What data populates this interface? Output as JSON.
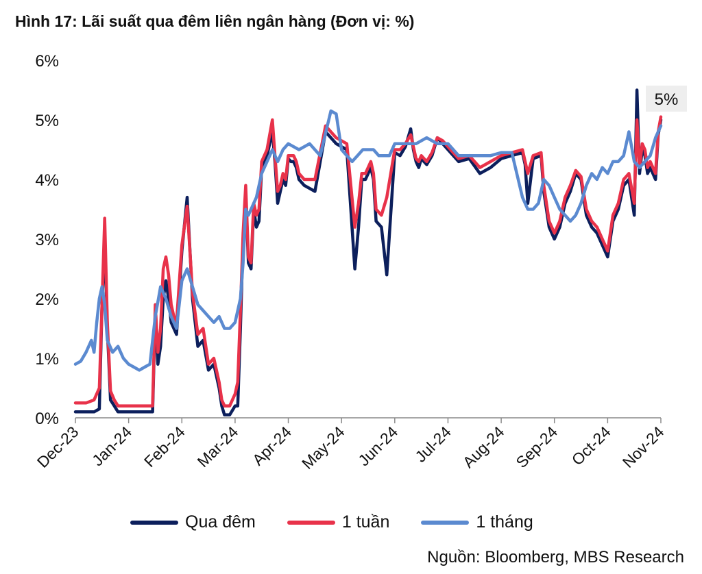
{
  "chart_data": {
    "type": "line",
    "title": "Hình 17: Lãi suất qua đêm liên ngân hàng (Đơn vị: %)",
    "source": "Nguồn: Bloomberg, MBS Research",
    "ylim": [
      0,
      6
    ],
    "yticks": [
      "0%",
      "1%",
      "2%",
      "3%",
      "4%",
      "5%",
      "6%"
    ],
    "categories": [
      "Dec-23",
      "Jan-24",
      "Feb-24",
      "Mar-24",
      "Apr-24",
      "May-24",
      "Jun-24",
      "Jul-24",
      "Aug-24",
      "Sep-24",
      "Oct-24",
      "Nov-24"
    ],
    "annotation": {
      "text": "5%",
      "value": 5.0,
      "position": "end"
    },
    "series": [
      {
        "name": "Qua đêm",
        "color": "#0c1f5c",
        "x": [
          0,
          0.2,
          0.35,
          0.45,
          0.5,
          0.55,
          0.6,
          0.66,
          0.73,
          0.8,
          0.9,
          1.0,
          1.15,
          1.3,
          1.45,
          1.5,
          1.55,
          1.6,
          1.65,
          1.7,
          1.75,
          1.8,
          1.85,
          1.9,
          2.0,
          2.1,
          2.2,
          2.3,
          2.4,
          2.5,
          2.6,
          2.7,
          2.75,
          2.8,
          2.9,
          3.0,
          3.05,
          3.1,
          3.15,
          3.2,
          3.25,
          3.3,
          3.35,
          3.4,
          3.45,
          3.5,
          3.6,
          3.7,
          3.75,
          3.8,
          3.85,
          3.9,
          3.95,
          4.0,
          4.05,
          4.1,
          4.15,
          4.2,
          4.3,
          4.5,
          4.7,
          4.9,
          5.1,
          5.25,
          5.32,
          5.38,
          5.45,
          5.55,
          5.6,
          5.65,
          5.75,
          5.85,
          6.0,
          6.1,
          6.2,
          6.3,
          6.35,
          6.4,
          6.45,
          6.5,
          6.6,
          6.7,
          6.8,
          6.9,
          7.0,
          7.2,
          7.4,
          7.6,
          7.8,
          8.0,
          8.2,
          8.4,
          8.45,
          8.5,
          8.6,
          8.75,
          8.8,
          8.9,
          9.0,
          9.1,
          9.2,
          9.3,
          9.4,
          9.5,
          9.6,
          9.7,
          9.8,
          9.9,
          10.0,
          10.1,
          10.2,
          10.3,
          10.4,
          10.5,
          10.55,
          10.6,
          10.65,
          10.7,
          10.75,
          10.8,
          10.9,
          10.95,
          11.0
        ],
        "values": [
          0.1,
          0.1,
          0.1,
          0.15,
          1.9,
          3.0,
          1.5,
          0.3,
          0.2,
          0.1,
          0.1,
          0.1,
          0.1,
          0.1,
          0.1,
          1.8,
          0.9,
          1.2,
          2.0,
          2.3,
          2.0,
          1.6,
          1.5,
          1.4,
          2.8,
          3.7,
          2.0,
          1.2,
          1.3,
          0.8,
          0.9,
          0.5,
          0.2,
          0.05,
          0.05,
          0.2,
          0.2,
          1.5,
          3.0,
          3.8,
          2.6,
          2.5,
          3.5,
          3.2,
          3.3,
          4.2,
          4.4,
          4.8,
          4.3,
          3.6,
          3.8,
          4.0,
          3.9,
          4.35,
          4.3,
          4.3,
          4.2,
          4.0,
          3.9,
          3.8,
          4.8,
          4.6,
          4.5,
          2.5,
          3.2,
          4.0,
          4.0,
          4.2,
          4.0,
          3.3,
          3.2,
          2.4,
          4.45,
          4.4,
          4.55,
          4.85,
          4.5,
          4.3,
          4.2,
          4.35,
          4.25,
          4.4,
          4.7,
          4.6,
          4.5,
          4.3,
          4.35,
          4.1,
          4.2,
          4.35,
          4.4,
          4.45,
          4.25,
          3.6,
          4.35,
          4.4,
          3.8,
          3.2,
          3.0,
          3.2,
          3.6,
          3.8,
          4.1,
          4.0,
          3.4,
          3.2,
          3.1,
          2.9,
          2.7,
          3.3,
          3.5,
          3.9,
          4.0,
          3.4,
          5.5,
          4.1,
          4.5,
          4.4,
          4.1,
          4.2,
          4.0,
          4.75,
          5.0
        ]
      },
      {
        "name": "1 tuần",
        "color": "#e8324a",
        "x": [
          0,
          0.2,
          0.35,
          0.45,
          0.5,
          0.55,
          0.6,
          0.66,
          0.73,
          0.8,
          0.9,
          1.0,
          1.15,
          1.3,
          1.45,
          1.5,
          1.55,
          1.6,
          1.65,
          1.7,
          1.75,
          1.8,
          1.85,
          1.9,
          2.0,
          2.1,
          2.2,
          2.3,
          2.4,
          2.5,
          2.6,
          2.7,
          2.75,
          2.8,
          2.9,
          3.0,
          3.05,
          3.1,
          3.15,
          3.2,
          3.25,
          3.3,
          3.35,
          3.4,
          3.45,
          3.5,
          3.6,
          3.7,
          3.75,
          3.8,
          3.85,
          3.9,
          3.95,
          4.0,
          4.05,
          4.1,
          4.15,
          4.2,
          4.3,
          4.5,
          4.7,
          4.9,
          5.1,
          5.25,
          5.32,
          5.38,
          5.45,
          5.55,
          5.6,
          5.65,
          5.75,
          5.85,
          6.0,
          6.1,
          6.2,
          6.3,
          6.35,
          6.4,
          6.45,
          6.5,
          6.6,
          6.7,
          6.8,
          6.9,
          7.0,
          7.2,
          7.4,
          7.6,
          7.8,
          8.0,
          8.2,
          8.4,
          8.45,
          8.5,
          8.6,
          8.75,
          8.8,
          8.9,
          9.0,
          9.1,
          9.2,
          9.3,
          9.4,
          9.5,
          9.6,
          9.7,
          9.8,
          9.9,
          10.0,
          10.1,
          10.2,
          10.3,
          10.4,
          10.5,
          10.55,
          10.6,
          10.65,
          10.7,
          10.75,
          10.8,
          10.9,
          10.95,
          11.0
        ],
        "values": [
          0.25,
          0.25,
          0.3,
          0.5,
          1.9,
          3.35,
          1.6,
          0.45,
          0.3,
          0.2,
          0.2,
          0.2,
          0.2,
          0.2,
          0.2,
          1.9,
          1.1,
          1.5,
          2.5,
          2.7,
          2.4,
          1.9,
          1.7,
          1.6,
          2.9,
          3.55,
          2.1,
          1.4,
          1.5,
          0.9,
          1.0,
          0.6,
          0.3,
          0.2,
          0.2,
          0.4,
          0.6,
          1.8,
          3.1,
          3.9,
          2.7,
          2.6,
          3.6,
          3.4,
          3.5,
          4.3,
          4.5,
          5.0,
          4.4,
          3.8,
          3.9,
          4.1,
          4.0,
          4.4,
          4.4,
          4.4,
          4.3,
          4.1,
          4.0,
          4.0,
          4.9,
          4.7,
          4.6,
          3.2,
          3.6,
          4.1,
          4.1,
          4.3,
          4.1,
          3.5,
          3.4,
          3.7,
          4.5,
          4.5,
          4.6,
          4.75,
          4.55,
          4.35,
          4.3,
          4.4,
          4.3,
          4.45,
          4.7,
          4.65,
          4.55,
          4.35,
          4.4,
          4.2,
          4.3,
          4.4,
          4.45,
          4.5,
          4.3,
          4.1,
          4.4,
          4.45,
          3.9,
          3.3,
          3.1,
          3.3,
          3.7,
          3.9,
          4.15,
          4.05,
          3.5,
          3.3,
          3.2,
          3.0,
          2.8,
          3.4,
          3.6,
          4.0,
          4.1,
          3.6,
          5.0,
          4.2,
          4.6,
          4.5,
          4.2,
          4.3,
          4.1,
          4.8,
          5.05
        ]
      },
      {
        "name": "1 tháng",
        "color": "#5b8ad0",
        "x": [
          0,
          0.1,
          0.2,
          0.3,
          0.35,
          0.4,
          0.45,
          0.5,
          0.55,
          0.6,
          0.7,
          0.8,
          0.9,
          1.0,
          1.1,
          1.2,
          1.3,
          1.4,
          1.45,
          1.5,
          1.6,
          1.7,
          1.8,
          1.9,
          2.0,
          2.1,
          2.2,
          2.3,
          2.4,
          2.5,
          2.6,
          2.7,
          2.8,
          2.9,
          3.0,
          3.1,
          3.15,
          3.2,
          3.25,
          3.3,
          3.35,
          3.4,
          3.5,
          3.6,
          3.7,
          3.8,
          3.9,
          4.0,
          4.2,
          4.4,
          4.6,
          4.8,
          4.9,
          5.0,
          5.1,
          5.2,
          5.3,
          5.4,
          5.5,
          5.6,
          5.7,
          5.8,
          5.9,
          6.0,
          6.2,
          6.4,
          6.6,
          6.8,
          7.0,
          7.2,
          7.4,
          7.6,
          7.8,
          8.0,
          8.2,
          8.4,
          8.5,
          8.6,
          8.7,
          8.8,
          8.9,
          9.0,
          9.1,
          9.2,
          9.3,
          9.4,
          9.5,
          9.6,
          9.7,
          9.8,
          9.9,
          10.0,
          10.1,
          10.2,
          10.3,
          10.4,
          10.5,
          10.6,
          10.7,
          10.8,
          10.9,
          11.0
        ],
        "values": [
          0.9,
          0.95,
          1.1,
          1.3,
          1.1,
          1.6,
          2.0,
          2.2,
          1.9,
          1.3,
          1.1,
          1.2,
          1.0,
          0.9,
          0.85,
          0.8,
          0.85,
          0.9,
          1.3,
          1.7,
          2.2,
          2.0,
          1.7,
          1.5,
          2.3,
          2.5,
          2.2,
          1.9,
          1.8,
          1.7,
          1.6,
          1.7,
          1.5,
          1.5,
          1.6,
          2.0,
          2.6,
          3.5,
          3.4,
          3.5,
          3.6,
          3.7,
          4.1,
          4.3,
          4.5,
          4.3,
          4.5,
          4.6,
          4.5,
          4.6,
          4.4,
          5.15,
          5.1,
          4.5,
          4.4,
          4.3,
          4.4,
          4.5,
          4.5,
          4.5,
          4.4,
          4.4,
          4.4,
          4.6,
          4.6,
          4.6,
          4.7,
          4.6,
          4.6,
          4.4,
          4.4,
          4.4,
          4.4,
          4.45,
          4.45,
          3.7,
          3.5,
          3.5,
          3.6,
          4.0,
          3.9,
          3.7,
          3.5,
          3.4,
          3.3,
          3.4,
          3.6,
          3.9,
          4.1,
          4.0,
          4.2,
          4.1,
          4.3,
          4.3,
          4.4,
          4.8,
          4.3,
          4.2,
          4.3,
          4.4,
          4.7,
          4.9
        ]
      }
    ]
  }
}
